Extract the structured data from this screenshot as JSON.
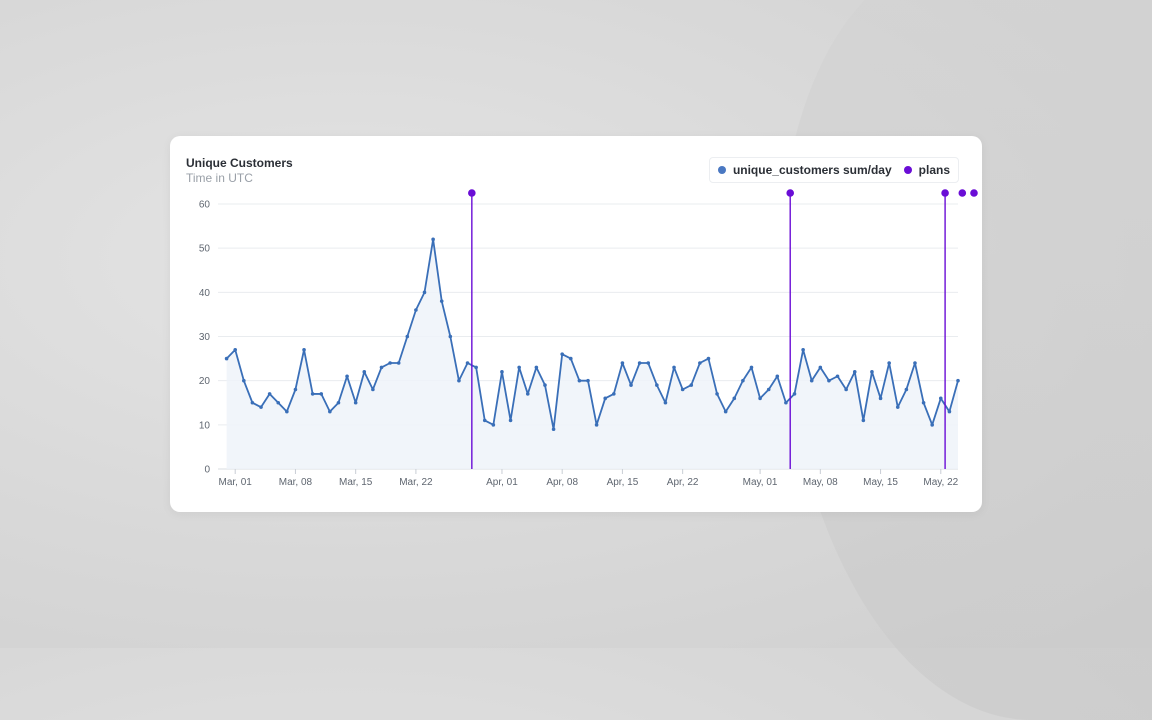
{
  "card": {
    "title": "Unique Customers",
    "subtitle": "Time in UTC"
  },
  "legend": [
    {
      "label": "unique_customers sum/day",
      "color": "#4a78c2"
    },
    {
      "label": "plans",
      "color": "#6a0dd6"
    }
  ],
  "chart_data": {
    "type": "line",
    "title": "Unique Customers",
    "subtitle": "Time in UTC",
    "xlabel": "",
    "ylabel": "",
    "ylim": [
      0,
      60
    ],
    "yticks": [
      0,
      10,
      20,
      30,
      40,
      50,
      60
    ],
    "x_start_day": 0,
    "x_range_days": [
      -1,
      85
    ],
    "xticks": [
      {
        "label": "Mar, 01",
        "day": 1
      },
      {
        "label": "Mar, 08",
        "day": 8
      },
      {
        "label": "Mar, 15",
        "day": 15
      },
      {
        "label": "Mar, 22",
        "day": 22
      },
      {
        "label": "Apr, 01",
        "day": 32
      },
      {
        "label": "Apr, 08",
        "day": 39
      },
      {
        "label": "Apr, 15",
        "day": 46
      },
      {
        "label": "Apr, 22",
        "day": 53
      },
      {
        "label": "May, 01",
        "day": 62
      },
      {
        "label": "May, 08",
        "day": 69
      },
      {
        "label": "May, 15",
        "day": 76
      },
      {
        "label": "May, 22",
        "day": 83
      }
    ],
    "series": [
      {
        "name": "unique_customers sum/day",
        "color": "#3a6fb8",
        "values": [
          25,
          27,
          20,
          15,
          14,
          17,
          15,
          13,
          18,
          27,
          17,
          17,
          13,
          15,
          21,
          15,
          22,
          18,
          23,
          24,
          24,
          30,
          36,
          40,
          52,
          38,
          30,
          20,
          24,
          23,
          11,
          10,
          22,
          11,
          23,
          17,
          23,
          19,
          9,
          26,
          25,
          20,
          20,
          10,
          16,
          17,
          24,
          19,
          24,
          24,
          19,
          15,
          23,
          18,
          19,
          24,
          25,
          17,
          13,
          16,
          20,
          23,
          16,
          18,
          21,
          15,
          17,
          27,
          20,
          23,
          20,
          21,
          18,
          22,
          11,
          22,
          16,
          24,
          14,
          18,
          24,
          15,
          10,
          16,
          13,
          20
        ]
      }
    ],
    "annotations": {
      "name": "plans",
      "color": "#6a0dd6",
      "days": [
        28.5,
        65.5,
        83.5,
        85.5,
        87
      ]
    }
  }
}
